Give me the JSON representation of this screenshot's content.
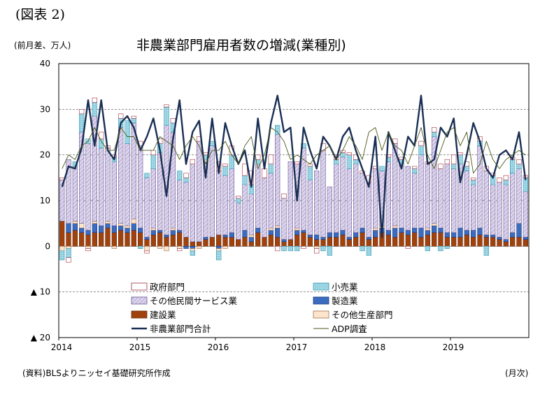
{
  "figure_label": "(図表 2)",
  "unit_label": "(前月差、万人)",
  "source_note": "(資料)BLSよりニッセイ基礎研究所作成",
  "x_unit_label": "(月次)",
  "colors": {
    "government": "#ffffff",
    "government_edge": "#a03040",
    "retail": "#a8dce8",
    "retail_edge": "#3a9ab8",
    "other_private_services": "#ddd4ee",
    "other_private_services_edge": "#6a5a90",
    "manufacturing": "#3c6cc0",
    "manufacturing_edge": "#1a3a80",
    "construction": "#a0420e",
    "construction_edge": "#6a2a08",
    "other_goods": "#fde4cc",
    "other_goods_edge": "#a07050",
    "nonfarm_total": "#1a2f55",
    "adp": "#4a5a1a"
  },
  "chart_data": {
    "type": "bar",
    "stacked": true,
    "title": "非農業部門雇用者数の増減(業種別)",
    "ylim": [
      -20,
      40
    ],
    "yticks": [
      -20,
      -10,
      0,
      10,
      20,
      30,
      40
    ],
    "ytick_labels": [
      "▲ 20",
      "▲ 10",
      "0",
      "10",
      "20",
      "30",
      "40"
    ],
    "grid": true,
    "legend_position": "bottom",
    "x_start": "2014-01",
    "x_end": "2019-12",
    "year_labels": [
      "2014",
      "2015",
      "2016",
      "2017",
      "2018",
      "2019"
    ],
    "series": [
      {
        "name": "政府部門",
        "key": "government",
        "kind": "bar",
        "values": [
          0.5,
          -1,
          0,
          1,
          -0.5,
          1,
          1.5,
          0.5,
          0.5,
          1,
          0,
          0.5,
          1,
          -0.5,
          1,
          1,
          0.5,
          1,
          -0.5,
          1,
          1,
          1,
          0.5,
          0,
          2,
          0.5,
          2,
          0.5,
          2.5,
          3,
          1,
          2,
          2,
          -1,
          1,
          0,
          0.5,
          -0.5,
          0.5,
          -1,
          1.5,
          0,
          1,
          0.5,
          0.5,
          1,
          0.5,
          1.5,
          0.5,
          0,
          0.5,
          1,
          0.5,
          -0.5,
          0.5,
          1,
          0.5,
          1,
          1,
          1,
          2,
          0.5,
          1,
          0.5,
          1,
          1,
          0.5,
          1,
          1,
          0.5,
          1,
          0.5
        ]
      },
      {
        "name": "小売業",
        "key": "retail",
        "kind": "bar",
        "values": [
          -2,
          -2,
          1,
          4,
          1,
          3,
          2,
          0,
          1,
          2,
          5,
          1,
          -0.5,
          1,
          3,
          2,
          4,
          2,
          2,
          1,
          -1,
          0,
          1,
          1,
          -2,
          2,
          3,
          1,
          2,
          2,
          1,
          0,
          2,
          2,
          -1,
          -1,
          -1,
          1,
          3,
          0,
          -1,
          -2,
          1,
          1,
          3,
          1,
          -1,
          -2,
          0,
          1,
          1,
          0,
          1,
          0,
          1,
          2,
          -1,
          1,
          -1,
          -0.5,
          1,
          2,
          1,
          1,
          1,
          -2,
          2,
          0,
          1,
          3,
          1,
          3
        ]
      },
      {
        "name": "その他民間サービス業",
        "key": "other_private_services",
        "kind": "bar",
        "values": [
          9,
          14,
          12,
          20,
          19,
          23,
          17,
          16,
          14,
          21,
          18,
          21,
          18,
          13,
          13,
          17,
          24,
          21,
          11,
          12,
          17,
          22,
          17,
          20,
          14,
          13,
          14,
          8,
          10,
          9,
          14,
          13,
          12,
          20,
          9,
          17,
          14,
          18,
          12,
          14,
          19,
          10,
          15,
          16,
          15,
          15,
          12,
          12,
          13,
          12,
          15,
          18,
          14,
          14,
          12,
          16,
          14,
          19,
          13,
          15,
          14,
          14,
          13,
          10,
          18,
          14,
          11,
          12,
          12,
          13,
          12,
          10
        ]
      },
      {
        "name": "製造業",
        "key": "manufacturing",
        "kind": "bar",
        "values": [
          0,
          2,
          1.5,
          1,
          1,
          2,
          1.5,
          1,
          1.5,
          1,
          1,
          1.5,
          1,
          0.5,
          1,
          0.5,
          0.5,
          1,
          0.5,
          -0.5,
          -0.5,
          0,
          0.5,
          0,
          -0.5,
          0.5,
          1,
          0,
          1.5,
          1,
          1,
          0,
          1,
          2,
          0.5,
          0,
          1,
          0.5,
          0.5,
          1,
          0.5,
          1,
          1,
          1,
          0.5,
          1,
          1,
          0.5,
          1.5,
          1,
          1,
          2,
          1,
          1,
          1,
          2,
          1,
          1.5,
          1,
          1,
          1,
          2,
          1,
          1.5,
          1.5,
          0.5,
          0.5,
          0.5,
          0.5,
          1,
          3,
          0.5
        ]
      },
      {
        "name": "建設業",
        "key": "construction",
        "kind": "bar",
        "values": [
          5.5,
          3,
          3.5,
          3,
          2.5,
          3,
          3,
          4,
          3,
          3.5,
          3,
          3.5,
          3,
          1.5,
          2.5,
          3,
          2,
          2.5,
          3,
          2,
          1,
          1,
          1.5,
          2,
          2.5,
          2,
          2,
          1.5,
          2,
          1,
          3,
          2,
          2.5,
          2,
          1,
          1.5,
          2.5,
          3,
          2,
          1.5,
          1.5,
          2,
          2,
          2.5,
          1.5,
          2,
          3,
          1.5,
          2,
          3,
          2.5,
          2,
          3,
          2.5,
          3,
          2,
          2.5,
          3,
          3,
          2,
          2,
          2,
          2.5,
          2,
          2.5,
          2,
          2,
          1.5,
          1,
          2,
          2,
          1.5
        ]
      },
      {
        "name": "その他生産部門",
        "key": "other_goods",
        "kind": "bar",
        "values": [
          -1,
          -0.5,
          0.5,
          1,
          -0.5,
          0.5,
          0,
          0.5,
          -0.5,
          0.5,
          0.5,
          1,
          0,
          -1,
          0.5,
          -0.5,
          -1,
          0.5,
          -0.5,
          0,
          -0.5,
          -0.5,
          0,
          0,
          -0.5,
          -0.5,
          0,
          0,
          0,
          0.5,
          0,
          0,
          0.5,
          0.5,
          0,
          0,
          0.5,
          0,
          0,
          -0.5,
          0,
          0,
          0,
          0,
          0,
          0,
          0,
          0,
          0.5,
          0.5,
          0,
          0.5,
          0,
          0,
          0,
          0,
          0.5,
          0.5,
          0,
          0,
          0,
          0,
          0,
          0,
          0,
          0,
          0,
          0,
          0,
          0,
          0,
          0
        ]
      },
      {
        "name": "非農業部門合計",
        "key": "nonfarm_total",
        "kind": "line",
        "values": [
          13,
          17.5,
          17,
          21.5,
          32,
          22,
          32,
          21,
          19,
          27,
          28.5,
          26,
          21,
          24,
          28,
          21,
          11,
          23.5,
          32,
          18,
          25,
          27.5,
          15,
          28,
          16,
          27,
          22,
          18,
          21,
          13,
          28,
          17,
          27,
          33,
          25,
          26,
          10,
          26,
          21,
          17,
          24,
          22,
          19,
          24,
          26,
          21,
          17,
          13,
          24,
          2,
          25,
          21,
          17,
          24,
          22,
          33,
          18,
          19,
          26,
          24,
          28,
          14,
          20,
          27,
          23,
          17,
          15,
          20,
          21,
          19,
          25,
          14.5
        ]
      },
      {
        "name": "ADP調査",
        "key": "adp",
        "kind": "thin_line",
        "values": [
          17,
          20,
          19,
          22,
          23,
          26,
          23,
          21,
          21,
          26,
          24,
          24,
          21,
          21,
          21,
          24,
          23,
          22,
          19,
          22,
          24,
          22,
          18,
          21,
          21,
          23,
          20,
          18,
          22,
          24,
          17,
          20,
          26,
          25,
          23,
          19,
          20,
          19,
          18,
          20,
          21,
          22,
          19,
          21,
          24,
          22,
          19,
          25,
          26,
          21,
          25,
          22,
          21,
          18,
          22,
          26,
          20,
          17,
          21,
          25,
          26,
          22,
          25,
          16,
          18,
          23,
          19,
          17,
          19,
          20,
          21,
          20
        ]
      }
    ]
  }
}
